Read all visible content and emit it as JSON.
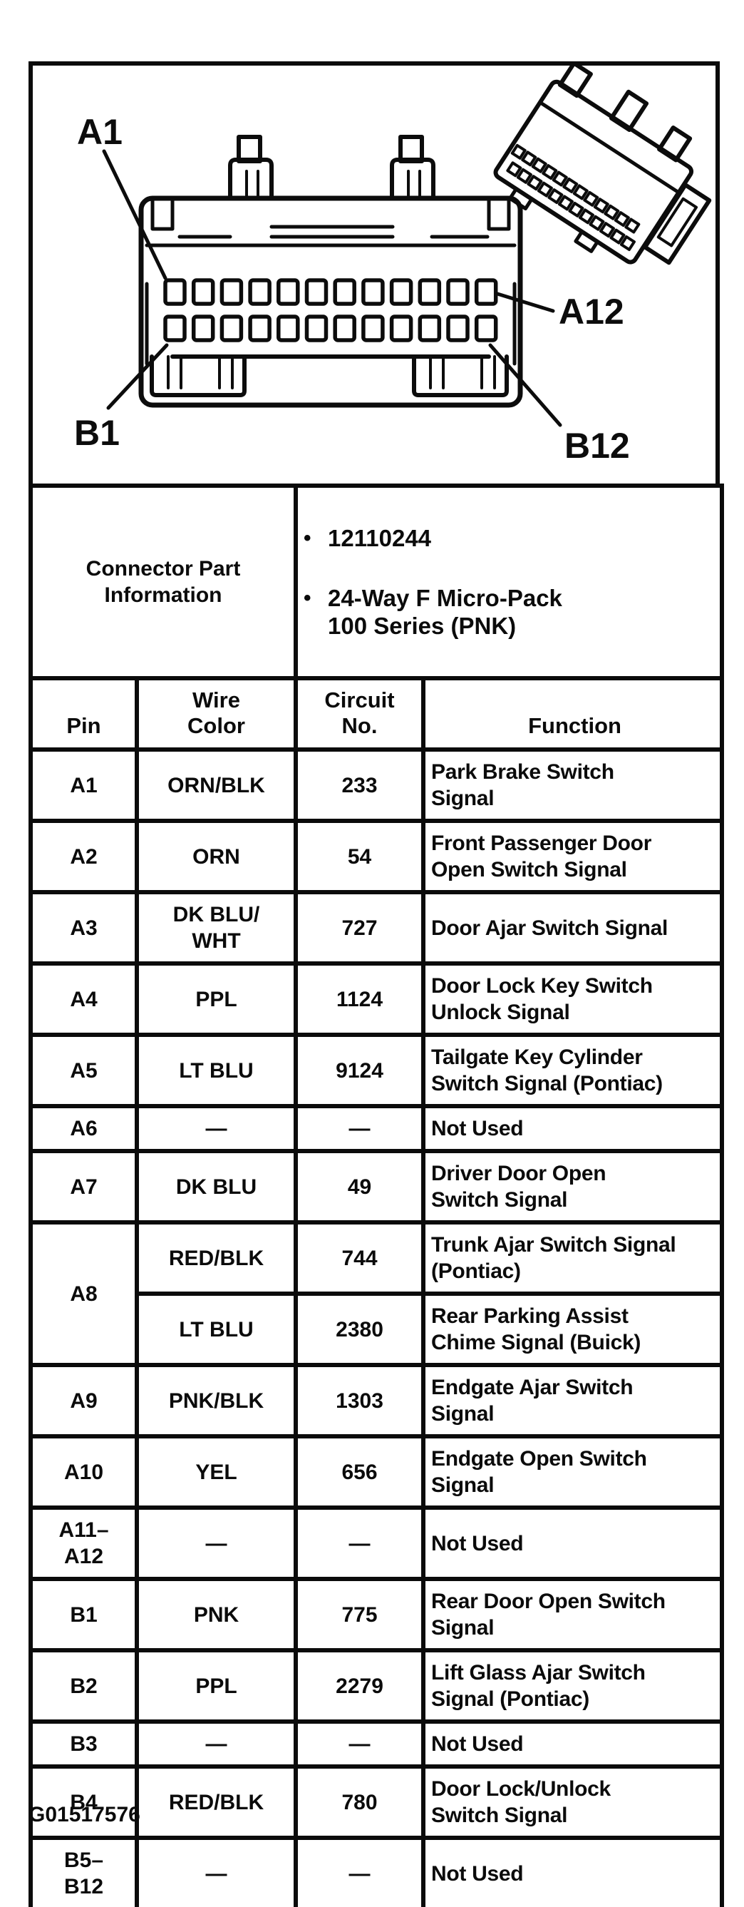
{
  "diagram": {
    "labels": {
      "a1": "A1",
      "a12": "A12",
      "b1": "B1",
      "b12": "B12"
    },
    "connector": {
      "rows": 2,
      "pins_per_row": 12
    }
  },
  "connector_info": {
    "title": "Connector Part\nInformation",
    "bullets": [
      "12110244",
      "24-Way F Micro-Pack\n100 Series (PNK)"
    ]
  },
  "table": {
    "headers": {
      "pin": "Pin",
      "wire": "Wire\nColor",
      "circuit": "Circuit\nNo.",
      "function": "Function"
    },
    "rows": [
      {
        "pin": "A1",
        "wire": "ORN/BLK",
        "circuit": "233",
        "function": "Park Brake Switch\nSignal"
      },
      {
        "pin": "A2",
        "wire": "ORN",
        "circuit": "54",
        "function": "Front Passenger Door\nOpen Switch Signal"
      },
      {
        "pin": "A3",
        "wire": "DK BLU/\nWHT",
        "circuit": "727",
        "function": "Door Ajar Switch Signal"
      },
      {
        "pin": "A4",
        "wire": "PPL",
        "circuit": "1124",
        "function": "Door Lock Key Switch\nUnlock Signal"
      },
      {
        "pin": "A5",
        "wire": "LT BLU",
        "circuit": "9124",
        "function": "Tailgate Key Cylinder\nSwitch Signal (Pontiac)"
      },
      {
        "pin": "A6",
        "wire": "—",
        "circuit": "—",
        "function": "Not Used"
      },
      {
        "pin": "A7",
        "wire": "DK BLU",
        "circuit": "49",
        "function": "Driver Door Open\nSwitch Signal"
      },
      {
        "pin": "A8",
        "pin_rowspan": 2,
        "wire": "RED/BLK",
        "circuit": "744",
        "function": "Trunk Ajar Switch Signal\n(Pontiac)"
      },
      {
        "wire": "LT BLU",
        "circuit": "2380",
        "function": "Rear Parking Assist\nChime Signal (Buick)"
      },
      {
        "pin": "A9",
        "wire": "PNK/BLK",
        "circuit": "1303",
        "function": "Endgate Ajar Switch\nSignal"
      },
      {
        "pin": "A10",
        "wire": "YEL",
        "circuit": "656",
        "function": "Endgate Open Switch\nSignal"
      },
      {
        "pin": "A11–\nA12",
        "wire": "—",
        "circuit": "—",
        "function": "Not Used"
      },
      {
        "pin": "B1",
        "wire": "PNK",
        "circuit": "775",
        "function": "Rear Door Open Switch\nSignal"
      },
      {
        "pin": "B2",
        "wire": "PPL",
        "circuit": "2279",
        "function": "Lift Glass Ajar Switch\nSignal (Pontiac)"
      },
      {
        "pin": "B3",
        "wire": "—",
        "circuit": "—",
        "function": "Not Used"
      },
      {
        "pin": "B4",
        "wire": "RED/BLK",
        "circuit": "780",
        "function": "Door Lock/Unlock\nSwitch Signal"
      },
      {
        "pin": "B5–\nB12",
        "wire": "—",
        "circuit": "—",
        "function": "Not Used",
        "last": true
      }
    ]
  },
  "footer": {
    "figure_code": "G01517576"
  }
}
